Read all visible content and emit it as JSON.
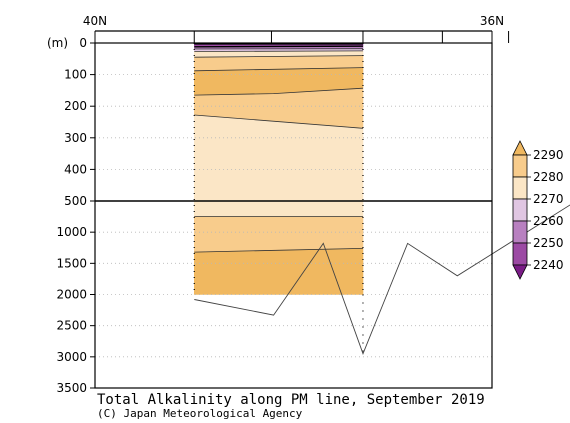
{
  "chart_data": {
    "type": "section-contour",
    "title": "Total Alkalinity along PM line, September 2019",
    "credit": "(C) Japan Meteorological Agency",
    "top_axis": {
      "labels": [
        "40N",
        "36N"
      ]
    },
    "ylabel": "(m)",
    "y_ticks_upper": [
      "0",
      "100",
      "200",
      "300",
      "400",
      "500"
    ],
    "y_ticks_lower": [
      "1000",
      "1500",
      "2000",
      "2500",
      "3000",
      "3500"
    ],
    "y_upper_range": [
      0,
      500
    ],
    "y_lower_range": [
      500,
      3500
    ],
    "data_x_range": [
      39.0,
      37.3
    ],
    "station_lats": [
      39.0,
      38.222,
      37.3,
      36.5,
      35.833,
      35.166,
      34.5
    ],
    "levels": [
      2240,
      2250,
      2260,
      2270,
      2280,
      2290
    ],
    "colorbar": {
      "labels": [
        "2290",
        "2280",
        "2270",
        "2260",
        "2250",
        "2240"
      ],
      "colors": {
        "above_2290": "#f0b860",
        "2280_2290": "#f8cc8c",
        "2270_2280": "#fbe6c6",
        "2260_2270": "#e0c6e2",
        "2250_2260": "#b880c0",
        "2240_2250": "#9c4aa4",
        "below_2240": "#7a1c86"
      }
    },
    "bottom_topography": [
      {
        "lat": 39.0,
        "depth": 2080
      },
      {
        "lat": 38.2,
        "depth": 2330
      },
      {
        "lat": 37.7,
        "depth": 1180
      },
      {
        "lat": 37.3,
        "depth": 2950
      },
      {
        "lat": 36.85,
        "depth": 1180
      },
      {
        "lat": 36.35,
        "depth": 1700
      },
      {
        "lat": 35.15,
        "depth": 500
      },
      {
        "lat": 35.0,
        "depth": 245
      }
    ],
    "contours": [
      {
        "level": 2240,
        "points": [
          [
            39.0,
            3
          ],
          [
            37.3,
            3
          ]
        ]
      },
      {
        "level": 2250,
        "points": [
          [
            39.0,
            12
          ],
          [
            37.3,
            10
          ]
        ]
      },
      {
        "level": 2260,
        "points": [
          [
            39.0,
            19
          ],
          [
            37.3,
            18
          ]
        ]
      },
      {
        "level": 2270,
        "points": [
          [
            39.0,
            27
          ],
          [
            37.3,
            25
          ]
        ]
      },
      {
        "level": 2280,
        "points": [
          [
            39.0,
            45
          ],
          [
            37.3,
            40
          ]
        ]
      },
      {
        "level": 2290,
        "points": [
          [
            39.0,
            88
          ],
          [
            37.3,
            78
          ]
        ]
      },
      {
        "level": 2280,
        "points": [
          [
            39.0,
            165
          ],
          [
            38.2,
            160
          ],
          [
            37.3,
            143
          ]
        ]
      },
      {
        "level": 2270,
        "points": [
          [
            39.0,
            228
          ],
          [
            37.3,
            270
          ]
        ]
      },
      {
        "level": 2270,
        "points": [
          [
            39.0,
            750
          ],
          [
            37.3,
            750
          ]
        ]
      },
      {
        "level": 2280,
        "points": [
          [
            39.0,
            1320
          ],
          [
            37.3,
            1260
          ]
        ]
      }
    ],
    "bands": [
      {
        "band": "below_2240",
        "top": [
          [
            39.0,
            0
          ],
          [
            37.3,
            0
          ]
        ],
        "bottom": [
          [
            39.0,
            3
          ],
          [
            37.3,
            3
          ]
        ]
      },
      {
        "band": "2240_2250",
        "top": [
          [
            39.0,
            3
          ],
          [
            37.3,
            3
          ]
        ],
        "bottom": [
          [
            39.0,
            12
          ],
          [
            37.3,
            10
          ]
        ]
      },
      {
        "band": "2250_2260",
        "top": [
          [
            39.0,
            12
          ],
          [
            37.3,
            10
          ]
        ],
        "bottom": [
          [
            39.0,
            19
          ],
          [
            37.3,
            18
          ]
        ]
      },
      {
        "band": "2260_2270",
        "top": [
          [
            39.0,
            19
          ],
          [
            37.3,
            18
          ]
        ],
        "bottom": [
          [
            39.0,
            27
          ],
          [
            37.3,
            25
          ]
        ]
      },
      {
        "band": "2270_2280",
        "top": [
          [
            39.0,
            27
          ],
          [
            37.3,
            25
          ]
        ],
        "bottom": [
          [
            39.0,
            45
          ],
          [
            37.3,
            40
          ]
        ]
      },
      {
        "band": "2280_2290",
        "top": [
          [
            39.0,
            45
          ],
          [
            37.3,
            40
          ]
        ],
        "bottom": [
          [
            39.0,
            88
          ],
          [
            37.3,
            78
          ]
        ]
      },
      {
        "band": "above_2290",
        "top": [
          [
            39.0,
            88
          ],
          [
            37.3,
            78
          ]
        ],
        "bottom": [
          [
            39.0,
            165
          ],
          [
            38.2,
            160
          ],
          [
            37.3,
            143
          ]
        ]
      },
      {
        "band": "2280_2290",
        "top": [
          [
            39.0,
            165
          ],
          [
            38.2,
            160
          ],
          [
            37.3,
            143
          ]
        ],
        "bottom": [
          [
            39.0,
            228
          ],
          [
            37.3,
            270
          ]
        ]
      },
      {
        "band": "2270_2280",
        "top": [
          [
            39.0,
            228
          ],
          [
            37.3,
            270
          ]
        ],
        "bottom": [
          [
            39.0,
            750
          ],
          [
            37.3,
            750
          ]
        ]
      },
      {
        "band": "2280_2290",
        "top": [
          [
            39.0,
            750
          ],
          [
            37.3,
            750
          ]
        ],
        "bottom": [
          [
            39.0,
            1320
          ],
          [
            37.3,
            1260
          ]
        ]
      },
      {
        "band": "above_2290",
        "top": [
          [
            39.0,
            1320
          ],
          [
            37.3,
            1260
          ]
        ],
        "bottom": [
          [
            39.0,
            2000
          ],
          [
            37.3,
            2000
          ]
        ]
      }
    ],
    "grid": true
  }
}
